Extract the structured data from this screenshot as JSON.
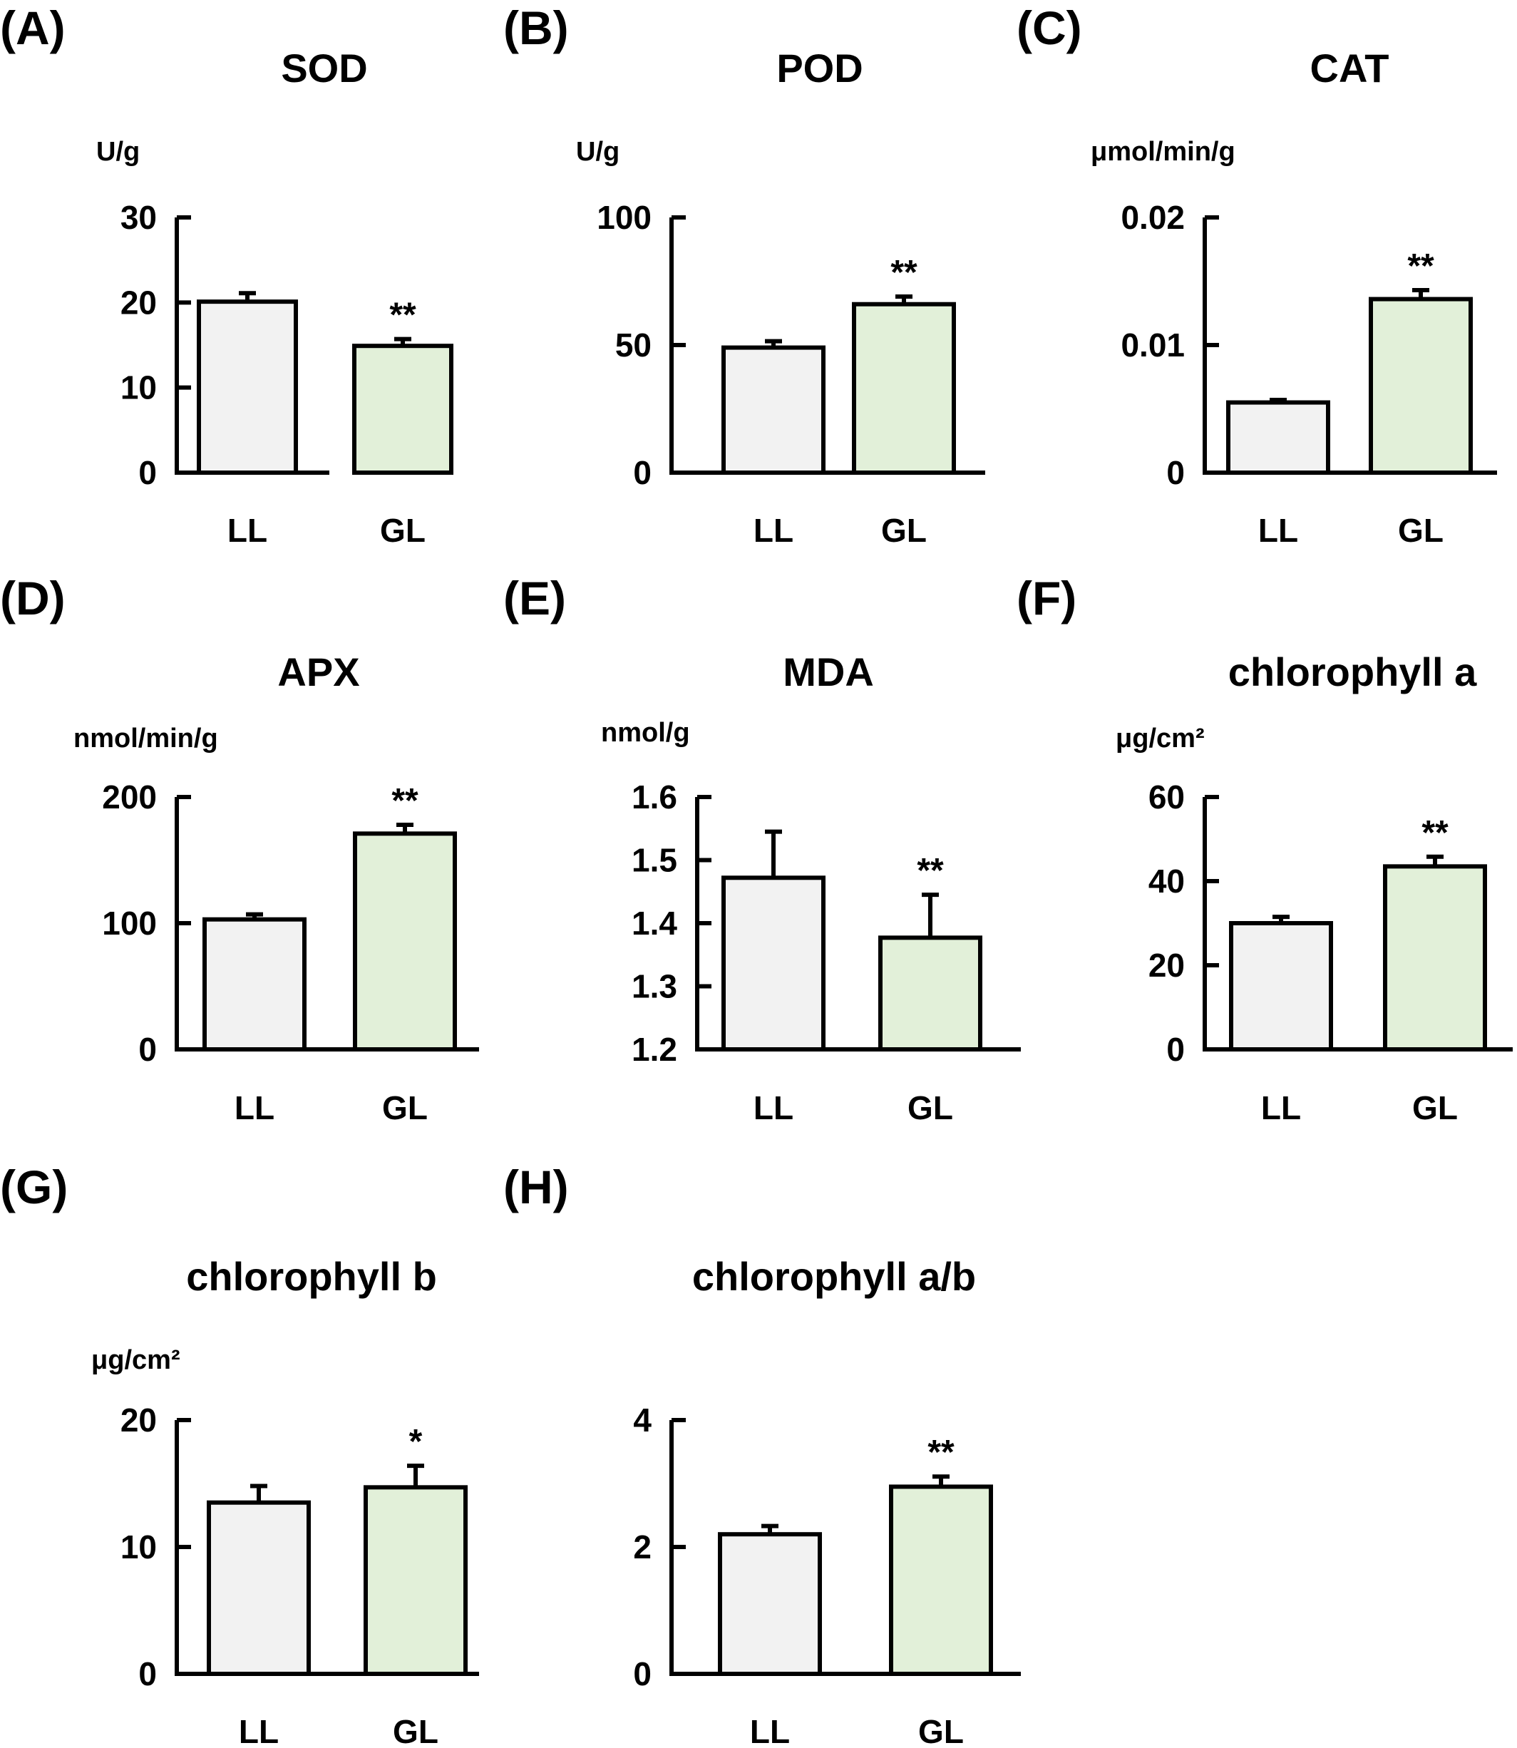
{
  "colors": {
    "LL": "#f2f2f2",
    "GL": "#e2f0d9",
    "stroke": "#000000"
  },
  "chart_data": [
    {
      "panel": "(A)",
      "type": "bar",
      "title": "SOD",
      "ylabel": "U/g",
      "ylim": [
        0,
        30
      ],
      "yticks": [
        "0",
        "10",
        "20",
        "30"
      ],
      "categories": [
        "LL",
        "GL"
      ],
      "values": [
        20.1,
        14.9
      ],
      "errors": [
        1.0,
        0.8
      ],
      "significance": [
        "",
        "**"
      ]
    },
    {
      "panel": "(B)",
      "type": "bar",
      "title": "POD",
      "ylabel": "U/g",
      "ylim": [
        0,
        100
      ],
      "yticks": [
        "0",
        "50",
        "100"
      ],
      "categories": [
        "LL",
        "GL"
      ],
      "values": [
        49,
        66
      ],
      "errors": [
        2.5,
        3.0
      ],
      "significance": [
        "",
        "**"
      ]
    },
    {
      "panel": "(C)",
      "type": "bar",
      "title": "CAT",
      "ylabel": "μmol/min/g",
      "ylim": [
        0,
        0.02
      ],
      "yticks": [
        "0",
        "0.01",
        "0.02"
      ],
      "categories": [
        "LL",
        "GL"
      ],
      "values": [
        0.0055,
        0.0136
      ],
      "errors": [
        0.0002,
        0.0007
      ],
      "significance": [
        "",
        "**"
      ]
    },
    {
      "panel": "(D)",
      "type": "bar",
      "title": "APX",
      "ylabel": "nmol/min/g",
      "ylim": [
        0,
        200
      ],
      "yticks": [
        "0",
        "100",
        "200"
      ],
      "categories": [
        "LL",
        "GL"
      ],
      "values": [
        103,
        171
      ],
      "errors": [
        4,
        7
      ],
      "significance": [
        "",
        "**"
      ]
    },
    {
      "panel": "(E)",
      "type": "bar",
      "title": "MDA",
      "ylabel": "nmol/g",
      "ylim": [
        1.2,
        1.6
      ],
      "yticks": [
        "1.2",
        "1.3",
        "1.4",
        "1.5",
        "1.6"
      ],
      "categories": [
        "LL",
        "GL"
      ],
      "values": [
        1.472,
        1.377
      ],
      "errors": [
        0.073,
        0.068
      ],
      "significance": [
        "",
        "**"
      ]
    },
    {
      "panel": "(F)",
      "type": "bar",
      "title": "chlorophyll a",
      "ylabel": "μg/cm²",
      "ylim": [
        0,
        60
      ],
      "yticks": [
        "0",
        "20",
        "40",
        "60"
      ],
      "categories": [
        "LL",
        "GL"
      ],
      "values": [
        30,
        43.5
      ],
      "errors": [
        1.5,
        2.3
      ],
      "significance": [
        "",
        "**"
      ]
    },
    {
      "panel": "(G)",
      "type": "bar",
      "title": "chlorophyll b",
      "ylabel": "μg/cm²",
      "ylim": [
        0,
        20
      ],
      "yticks": [
        "0",
        "10",
        "20"
      ],
      "categories": [
        "LL",
        "GL"
      ],
      "values": [
        13.5,
        14.7
      ],
      "errors": [
        1.3,
        1.7
      ],
      "significance": [
        "",
        "*"
      ]
    },
    {
      "panel": "(H)",
      "type": "bar",
      "title": "chlorophyll a/b",
      "ylabel": "",
      "ylim": [
        0,
        4
      ],
      "yticks": [
        "0",
        "2",
        "4"
      ],
      "categories": [
        "LL",
        "GL"
      ],
      "values": [
        2.2,
        2.95
      ],
      "errors": [
        0.13,
        0.16
      ],
      "significance": [
        "",
        "**"
      ]
    }
  ]
}
